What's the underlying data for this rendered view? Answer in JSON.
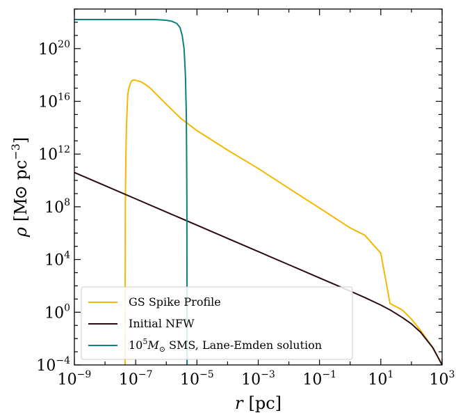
{
  "chart_data": {
    "type": "line",
    "title": "",
    "xlabel": {
      "var": "r",
      "unit": "[pc]"
    },
    "ylabel": {
      "var": "ρ",
      "unit_open": "[M",
      "unit_sub": "⊙",
      "unit_mid": " pc",
      "unit_sup": "−3",
      "unit_close": "]"
    },
    "xscale": "log",
    "yscale": "log",
    "xlim": [
      1e-09,
      1000
    ],
    "ylim": [
      0.0001,
      1e+23
    ],
    "x_ticks": [
      {
        "value": 1e-09,
        "base": "10",
        "exp": "−9"
      },
      {
        "value": 1e-07,
        "base": "10",
        "exp": "−7"
      },
      {
        "value": 1e-05,
        "base": "10",
        "exp": "−5"
      },
      {
        "value": 0.001,
        "base": "10",
        "exp": "−3"
      },
      {
        "value": 0.1,
        "base": "10",
        "exp": "−1"
      },
      {
        "value": 10,
        "base": "10",
        "exp": "1"
      },
      {
        "value": 1000,
        "base": "10",
        "exp": "3"
      }
    ],
    "y_ticks": [
      {
        "value": 0.0001,
        "base": "10",
        "exp": "−4"
      },
      {
        "value": 1,
        "base": "10",
        "exp": "0"
      },
      {
        "value": 10000,
        "base": "10",
        "exp": "4"
      },
      {
        "value": 100000000.0,
        "base": "10",
        "exp": "8"
      },
      {
        "value": 1000000000000.0,
        "base": "10",
        "exp": "12"
      },
      {
        "value": 1e+16,
        "base": "10",
        "exp": "16"
      },
      {
        "value": 1e+20,
        "base": "10",
        "exp": "20"
      }
    ],
    "grid": false,
    "legend_position": "lower-left",
    "series": [
      {
        "name": "GS Spike Profile",
        "color": "#f5b800",
        "x": [
          4.5e-08,
          4.6e-08,
          4.8e-08,
          5e-08,
          5.5e-08,
          6e-08,
          7e-08,
          8e-08,
          1e-07,
          1.5e-07,
          2e-07,
          3e-07,
          5e-07,
          1e-06,
          3e-06,
          1e-05,
          0.0001,
          0.001,
          0.01,
          0.1,
          1,
          3,
          10,
          20,
          50,
          100,
          200,
          500,
          1000
        ],
        "y": [
          0.0001,
          100000000.0,
          1000000000000.0,
          100000000000000.0,
          3e+16,
          1e+17,
          3e+17,
          4e+17,
          4e+17,
          3e+17,
          2e+17,
          1e+17,
          3e+16,
          6000000000000000.0,
          500000000000000.0,
          60000000000000.0,
          2000000000000.0,
          80000000000.0,
          2500000000.0,
          80000000.0,
          2500000.0,
          700000.0,
          30000,
          4.6,
          1.5,
          0.3,
          0.04,
          0.002,
          0.0001
        ]
      },
      {
        "name": "Initial NFW",
        "color": "#2b0a10",
        "x": [
          1e-09,
          1e-08,
          1e-07,
          1e-06,
          1e-05,
          0.0001,
          0.001,
          0.01,
          0.1,
          1,
          3,
          10,
          20,
          50,
          100,
          200,
          500,
          1000
        ],
        "y": [
          40000000000.0,
          4000000000.0,
          400000000.0,
          40000000.0,
          4000000.0,
          400000,
          40000,
          4000,
          400,
          40,
          13,
          3.5,
          1.5,
          0.4,
          0.13,
          0.03,
          0.002,
          0.0001
        ]
      },
      {
        "name_parts": {
          "pre": "10",
          "sup": "5",
          "post_var": "M",
          "post_sub": "⊙",
          "post": " SMS, Lane-Emden solution"
        },
        "color": "#0a8080",
        "x": [
          1e-09,
          1e-08,
          1e-07,
          2e-07,
          4e-07,
          7e-07,
          1e-06,
          1.5e-06,
          2.2e-06,
          2.8e-06,
          3.3e-06,
          3.8e-06,
          4.2e-06,
          4.5e-06,
          4.6e-06,
          4.7e-06,
          4.75e-06
        ],
        "y": [
          1.6e+22,
          1.6e+22,
          1.6e+22,
          1.6e+22,
          1.6e+22,
          1.5e+22,
          1.4e+22,
          1.2e+22,
          8e+21,
          4e+21,
          1e+21,
          1e+20,
          1e+18,
          1000000000000000.0,
          1000000000000.0,
          100000000.0,
          0.0001
        ]
      }
    ]
  }
}
